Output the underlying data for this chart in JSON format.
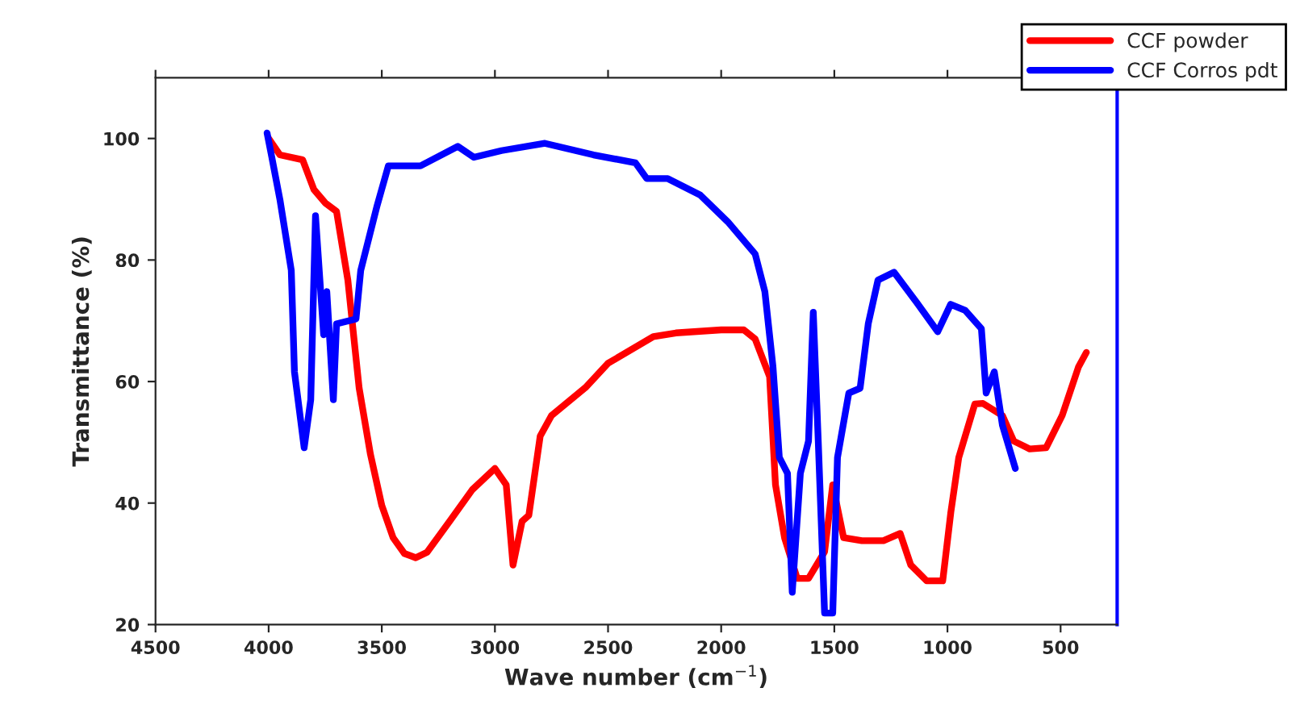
{
  "chart_data": {
    "type": "line",
    "xlabel": "Wave number (cm$^{−1}$)",
    "ylabel": "Transmittance (%)",
    "xlim": [
      4500,
      250
    ],
    "xticks": [
      4500,
      4000,
      3500,
      3000,
      2500,
      2000,
      1500,
      1000,
      500
    ],
    "ylim": [
      20,
      110
    ],
    "yticks": [
      20,
      40,
      60,
      80,
      100
    ],
    "grid": false,
    "legend": "top right",
    "marker": "none",
    "line_style": "solid",
    "series": [
      {
        "name": "CCF powder",
        "color": "#ff0000",
        "x": [
          4000,
          3950,
          3850,
          3800,
          3750,
          3700,
          3650,
          3600,
          3550,
          3500,
          3450,
          3400,
          3350,
          3300,
          3200,
          3100,
          3000,
          2950,
          2920,
          2880,
          2850,
          2800,
          2750,
          2600,
          2500,
          2300,
          2200,
          2000,
          1900,
          1850,
          1786,
          1760,
          1720,
          1664,
          1614,
          1543,
          1507,
          1459,
          1378,
          1283,
          1209,
          1162,
          1092,
          1021,
          985,
          950,
          879,
          843,
          757,
          707,
          636,
          564,
          493,
          421,
          386
        ],
        "values": [
          100,
          97.3,
          96.5,
          91.6,
          89.4,
          88,
          76.7,
          58.9,
          48,
          39.6,
          34.3,
          31.7,
          31,
          31.9,
          37,
          42.2,
          45.7,
          43,
          29.8,
          37,
          38,
          51,
          54.4,
          59,
          63,
          67.4,
          68,
          68.5,
          68.5,
          67,
          60.8,
          43,
          34.3,
          27.6,
          27.6,
          32,
          43,
          34.3,
          33.8,
          33.8,
          35,
          29.8,
          27.2,
          27.2,
          38.5,
          47.5,
          56.3,
          56.4,
          54.4,
          50.2,
          48.9,
          49.1,
          54.4,
          62.4,
          64.8
        ]
      },
      {
        "name": "CCF Corros pdt",
        "color": "#0000ff",
        "x": [
          4007,
          3986,
          3950,
          3900,
          3886,
          3843,
          3814,
          3793,
          3757,
          3743,
          3714,
          3700,
          3614,
          3593,
          3521,
          3471,
          3329,
          3164,
          3093,
          2971,
          2779,
          2564,
          2379,
          2329,
          2236,
          2093,
          1971,
          1850,
          1807,
          1771,
          1743,
          1707,
          1686,
          1650,
          1614,
          1593,
          1571,
          1543,
          1507,
          1486,
          1436,
          1386,
          1350,
          1307,
          1236,
          1136,
          1043,
          986,
          921,
          850,
          829,
          793,
          757,
          700
        ],
        "values": [
          100.9,
          96.9,
          89.9,
          78.3,
          61.6,
          49.1,
          57,
          87.3,
          67.7,
          74.8,
          57,
          69.5,
          70.3,
          78.3,
          88.9,
          95.5,
          95.5,
          98.7,
          96.9,
          98,
          99.2,
          97.3,
          96,
          93.4,
          93.4,
          90.7,
          86.3,
          81,
          74.8,
          62.4,
          47.5,
          44.9,
          25.3,
          44.9,
          50.2,
          71.4,
          50.2,
          21.9,
          21.9,
          47.5,
          58.1,
          58.9,
          69.5,
          76.7,
          78,
          73,
          68.2,
          72.7,
          71.7,
          68.7,
          58.1,
          61.6,
          52.8,
          45.7
        ]
      }
    ]
  }
}
